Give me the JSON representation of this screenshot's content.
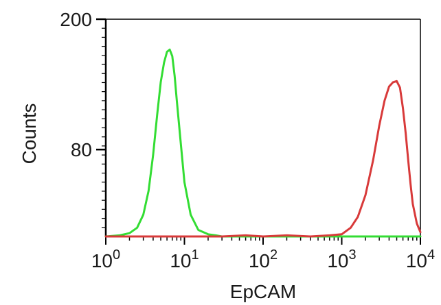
{
  "chart_data": {
    "type": "line",
    "xlabel": "EpCAM",
    "ylabel": "Counts",
    "x_scale": "log",
    "xlim": [
      1,
      10000
    ],
    "ylim": [
      0,
      200
    ],
    "x_ticks": [
      {
        "value": 1,
        "base": "10",
        "exp": "0"
      },
      {
        "value": 10,
        "base": "10",
        "exp": "1"
      },
      {
        "value": 100,
        "base": "10",
        "exp": "2"
      },
      {
        "value": 1000,
        "base": "10",
        "exp": "3"
      },
      {
        "value": 10000,
        "base": "10",
        "exp": "4"
      }
    ],
    "y_ticks": [
      {
        "value": 200,
        "label": "200"
      },
      {
        "value": 80,
        "label": "80"
      }
    ],
    "grid": false,
    "series": [
      {
        "color": "#33dd33",
        "x": [
          1,
          1.5,
          2,
          2.5,
          3,
          3.5,
          4,
          4.5,
          5,
          5.5,
          6,
          6.5,
          7,
          7.5,
          8,
          9,
          10,
          12,
          15,
          20,
          25,
          30,
          10000
        ],
        "y": [
          0,
          1,
          3,
          8,
          20,
          42,
          75,
          112,
          142,
          160,
          170,
          172,
          166,
          148,
          125,
          85,
          50,
          20,
          6,
          2,
          1,
          0,
          0
        ]
      },
      {
        "color": "#d83a3a",
        "x": [
          1,
          10,
          30,
          60,
          100,
          200,
          400,
          700,
          1000,
          1300,
          1600,
          2000,
          2500,
          3000,
          3500,
          4000,
          4500,
          5000,
          5500,
          6000,
          6500,
          7000,
          7500,
          8000,
          9000,
          10000
        ],
        "y": [
          0,
          0,
          0,
          1,
          0,
          1,
          0,
          1,
          2,
          8,
          18,
          38,
          70,
          102,
          125,
          138,
          142,
          143,
          137,
          118,
          95,
          70,
          48,
          30,
          12,
          4
        ]
      }
    ]
  }
}
